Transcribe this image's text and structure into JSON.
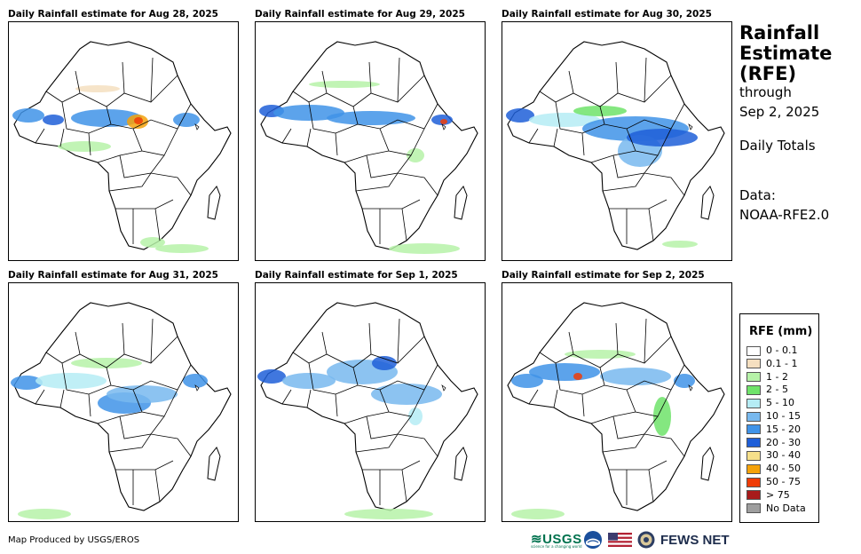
{
  "panels": [
    {
      "title": "Daily Rainfall estimate for Aug 28, 2025"
    },
    {
      "title": "Daily Rainfall estimate for Aug 29, 2025"
    },
    {
      "title": "Daily Rainfall estimate for Aug 30, 2025"
    },
    {
      "title": "Daily Rainfall estimate for Aug 31, 2025"
    },
    {
      "title": "Daily Rainfall estimate for Sep 1, 2025"
    },
    {
      "title": "Daily Rainfall estimate for Sep 2, 2025"
    }
  ],
  "info": {
    "title_line1": "Rainfall",
    "title_line2": "Estimate",
    "title_line3": "(RFE)",
    "through": "through",
    "date": "Sep 2, 2025",
    "totals": "Daily Totals",
    "data_label": "Data:",
    "data_source": "NOAA-RFE2.0"
  },
  "legend": {
    "title": "RFE (mm)",
    "items": [
      {
        "label": "0 - 0.1",
        "color": "#ffffff"
      },
      {
        "label": "0.1 - 1",
        "color": "#f5dfc0"
      },
      {
        "label": "1 - 2",
        "color": "#b6f2a8"
      },
      {
        "label": "2 - 5",
        "color": "#6fe36a"
      },
      {
        "label": "5 - 10",
        "color": "#b5ecf5"
      },
      {
        "label": "10 - 15",
        "color": "#78b9ef"
      },
      {
        "label": "15 - 20",
        "color": "#3f93e8"
      },
      {
        "label": "20 - 30",
        "color": "#1f5fd8"
      },
      {
        "label": "30 - 40",
        "color": "#f6e08a"
      },
      {
        "label": "40 - 50",
        "color": "#f5a20a"
      },
      {
        "label": "50 - 75",
        "color": "#f03c07"
      },
      {
        "label": "> 75",
        "color": "#a81b1b"
      },
      {
        "label": "No Data",
        "color": "#9e9e9e"
      }
    ]
  },
  "footer": {
    "credit": "Map Produced by USGS/EROS",
    "usgs": "≋USGS",
    "usgs_tagline": "science for a changing world",
    "fews": "FEWS NET"
  }
}
